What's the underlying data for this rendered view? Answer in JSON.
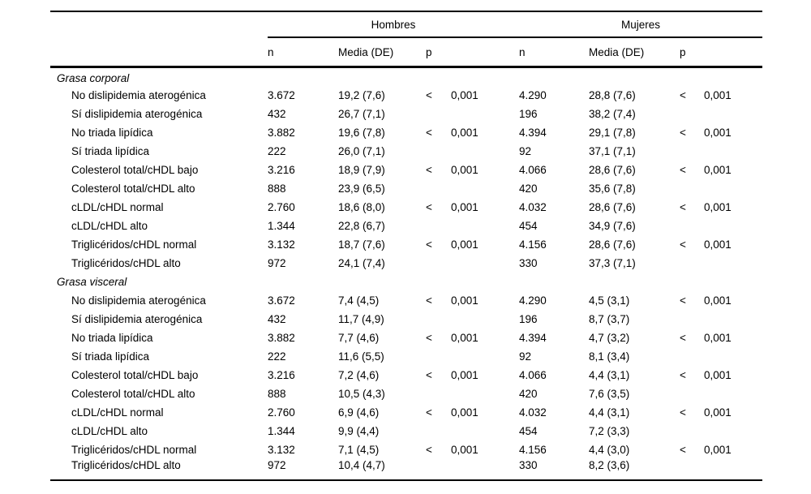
{
  "table": {
    "group_headers": [
      "Hombres",
      "Mujeres"
    ],
    "columns": {
      "n": "n",
      "media": "Media (DE)",
      "p": "p"
    },
    "sections": [
      {
        "title": "Grasa corporal",
        "rows": [
          {
            "label": "No dislipidemia aterogénica",
            "h_n": "3.672",
            "h_media": "19,2 (7,6)",
            "h_p_sign": "<",
            "h_p_value": "0,001",
            "m_n": "4.290",
            "m_media": "28,8 (7,6)",
            "m_p_sign": "<",
            "m_p_value": "0,001"
          },
          {
            "label": "Sí dislipidemia aterogénica",
            "h_n": "432",
            "h_media": "26,7 (7,1)",
            "h_p_sign": "",
            "h_p_value": "",
            "m_n": "196",
            "m_media": "38,2 (7,4)",
            "m_p_sign": "",
            "m_p_value": ""
          },
          {
            "label": "No triada lipídica",
            "h_n": "3.882",
            "h_media": "19,6 (7,8)",
            "h_p_sign": "<",
            "h_p_value": "0,001",
            "m_n": "4.394",
            "m_media": "29,1 (7,8)",
            "m_p_sign": "<",
            "m_p_value": "0,001"
          },
          {
            "label": "Sí triada lipídica",
            "h_n": "222",
            "h_media": "26,0 (7,1)",
            "h_p_sign": "",
            "h_p_value": "",
            "m_n": "92",
            "m_media": "37,1 (7,1)",
            "m_p_sign": "",
            "m_p_value": ""
          },
          {
            "label": "Colesterol total/cHDL bajo",
            "h_n": "3.216",
            "h_media": "18,9 (7,9)",
            "h_p_sign": "<",
            "h_p_value": "0,001",
            "m_n": "4.066",
            "m_media": "28,6 (7,6)",
            "m_p_sign": "<",
            "m_p_value": "0,001"
          },
          {
            "label": "Colesterol total/cHDL alto",
            "h_n": "888",
            "h_media": "23,9 (6,5)",
            "h_p_sign": "",
            "h_p_value": "",
            "m_n": "420",
            "m_media": "35,6 (7,8)",
            "m_p_sign": "",
            "m_p_value": ""
          },
          {
            "label": "cLDL/cHDL normal",
            "h_n": "2.760",
            "h_media": "18,6 (8,0)",
            "h_p_sign": "<",
            "h_p_value": "0,001",
            "m_n": "4.032",
            "m_media": "28,6 (7,6)",
            "m_p_sign": "<",
            "m_p_value": "0,001"
          },
          {
            "label": "cLDL/cHDL alto",
            "h_n": "1.344",
            "h_media": "22,8 (6,7)",
            "h_p_sign": "",
            "h_p_value": "",
            "m_n": "454",
            "m_media": "34,9 (7,6)",
            "m_p_sign": "",
            "m_p_value": ""
          },
          {
            "label": "Triglicéridos/cHDL normal",
            "h_n": "3.132",
            "h_media": "18,7 (7,6)",
            "h_p_sign": "<",
            "h_p_value": "0,001",
            "m_n": "4.156",
            "m_media": "28,6 (7,6)",
            "m_p_sign": "<",
            "m_p_value": "0,001"
          },
          {
            "label": "Triglicéridos/cHDL alto",
            "h_n": "972",
            "h_media": "24,1 (7,4)",
            "h_p_sign": "",
            "h_p_value": "",
            "m_n": "330",
            "m_media": "37,3 (7,1)",
            "m_p_sign": "",
            "m_p_value": ""
          }
        ]
      },
      {
        "title": "Grasa visceral",
        "rows": [
          {
            "label": "No dislipidemia aterogénica",
            "h_n": "3.672",
            "h_media": "7,4 (4,5)",
            "h_p_sign": "<",
            "h_p_value": "0,001",
            "m_n": "4.290",
            "m_media": "4,5 (3,1)",
            "m_p_sign": "<",
            "m_p_value": "0,001"
          },
          {
            "label": "Sí dislipidemia aterogénica",
            "h_n": "432",
            "h_media": "11,7 (4,9)",
            "h_p_sign": "",
            "h_p_value": "",
            "m_n": "196",
            "m_media": "8,7 (3,7)",
            "m_p_sign": "",
            "m_p_value": ""
          },
          {
            "label": "No triada lipídica",
            "h_n": "3.882",
            "h_media": "7,7 (4,6)",
            "h_p_sign": "<",
            "h_p_value": "0,001",
            "m_n": "4.394",
            "m_media": "4,7 (3,2)",
            "m_p_sign": "<",
            "m_p_value": "0,001"
          },
          {
            "label": "Sí triada lipídica",
            "h_n": "222",
            "h_media": "11,6 (5,5)",
            "h_p_sign": "",
            "h_p_value": "",
            "m_n": "92",
            "m_media": "8,1 (3,4)",
            "m_p_sign": "",
            "m_p_value": ""
          },
          {
            "label": "Colesterol total/cHDL bajo",
            "h_n": "3.216",
            "h_media": "7,2 (4,6)",
            "h_p_sign": "<",
            "h_p_value": "0,001",
            "m_n": "4.066",
            "m_media": "4,4 (3,1)",
            "m_p_sign": "<",
            "m_p_value": "0,001"
          },
          {
            "label": "Colesterol total/cHDL alto",
            "h_n": "888",
            "h_media": "10,5 (4,3)",
            "h_p_sign": "",
            "h_p_value": "",
            "m_n": "420",
            "m_media": "7,6 (3,5)",
            "m_p_sign": "",
            "m_p_value": ""
          },
          {
            "label": "cLDL/cHDL normal",
            "h_n": "2.760",
            "h_media": "6,9 (4,6)",
            "h_p_sign": "<",
            "h_p_value": "0,001",
            "m_n": "4.032",
            "m_media": "4,4 (3,1)",
            "m_p_sign": "<",
            "m_p_value": "0,001"
          },
          {
            "label": "cLDL/cHDL alto",
            "h_n": "1.344",
            "h_media": "9,9 (4,4)",
            "h_p_sign": "",
            "h_p_value": "",
            "m_n": "454",
            "m_media": "7,2 (3,3)",
            "m_p_sign": "",
            "m_p_value": ""
          },
          {
            "label": "Triglicéridos/cHDL normal",
            "h_n": "3.132",
            "h_media": "7,1 (4,5)",
            "h_p_sign": "<",
            "h_p_value": "0,001",
            "m_n": "4.156",
            "m_media": "4,4 (3,0)",
            "m_p_sign": "<",
            "m_p_value": "0,001"
          },
          {
            "label": "Triglicéridos/cHDL alto",
            "h_n": "972",
            "h_media": "10,4 (4,7)",
            "h_p_sign": "",
            "h_p_value": "",
            "m_n": "330",
            "m_media": "8,2 (3,6)",
            "m_p_sign": "",
            "m_p_value": ""
          }
        ]
      }
    ]
  }
}
